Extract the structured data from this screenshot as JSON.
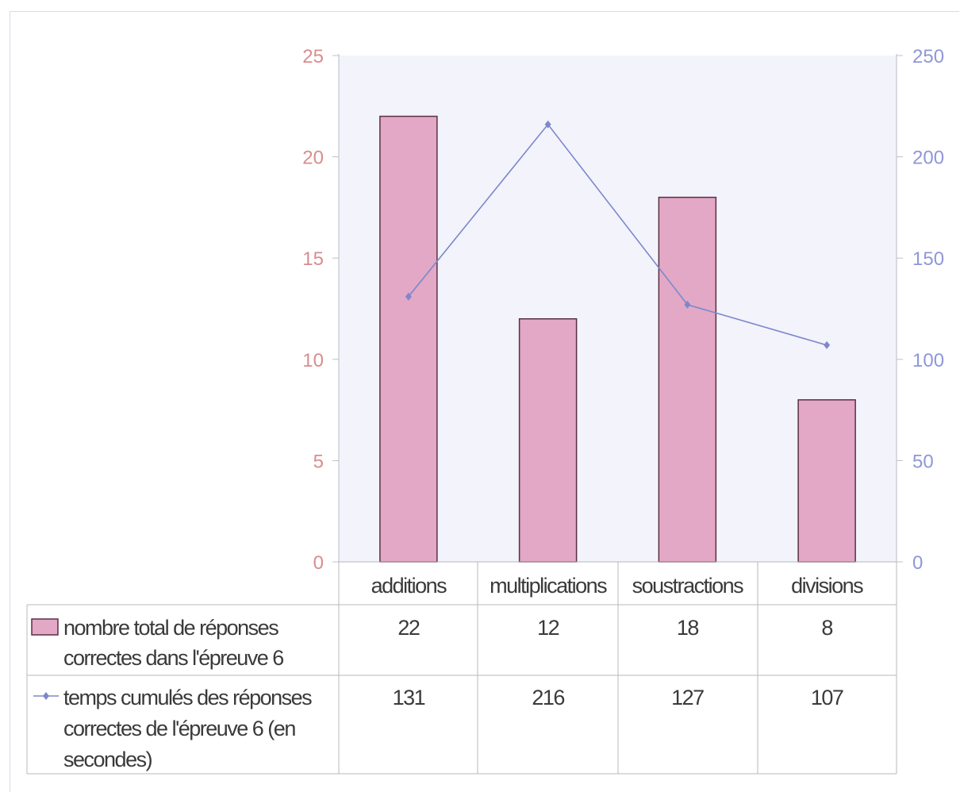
{
  "chart_data": {
    "type": "bar",
    "categories": [
      "additions",
      "multiplications",
      "soustractions",
      "divisions"
    ],
    "series": [
      {
        "name": "nombre total de réponses correctes dans l'épreuve 6",
        "legend_lines": [
          "nombre total de réponses",
          "correctes dans l'épreuve 6"
        ],
        "type": "bar",
        "axis": "left",
        "color": "#e2a8c6",
        "values": [
          22,
          12,
          18,
          8
        ]
      },
      {
        "name": "temps cumulés des réponses correctes de l'épreuve 6 (en secondes)",
        "legend_lines": [
          "temps cumulés des réponses",
          "correctes de l'épreuve 6 (en",
          "secondes)"
        ],
        "type": "line",
        "axis": "right",
        "color": "#7d88cc",
        "values": [
          131,
          216,
          127,
          107
        ]
      }
    ],
    "y_left": {
      "ylim": [
        0,
        25
      ],
      "ticks": [
        "0",
        "5",
        "10",
        "15",
        "20",
        "25"
      ],
      "color": "#d98d8d"
    },
    "y_right": {
      "ylim": [
        0,
        250
      ],
      "ticks": [
        "0",
        "50",
        "100",
        "150",
        "200",
        "250"
      ],
      "color": "#8f97d8"
    },
    "plot_background": "#f3f3fb",
    "grid": false,
    "legend": "data-table-below"
  }
}
